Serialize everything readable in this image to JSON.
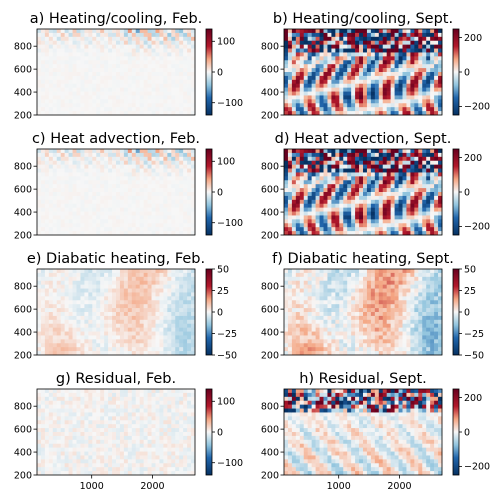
{
  "chart_data": [
    {
      "type": "heatmap",
      "title": "a) Heating/cooling, Feb.",
      "xlabel": "",
      "ylabel": "",
      "xlim": [
        100,
        2700
      ],
      "ylim": [
        200,
        950
      ],
      "xticks": [],
      "yticks": [
        200,
        400,
        600,
        800
      ],
      "colorbar": {
        "ticks": [
          -100,
          0,
          100
        ],
        "range": [
          -140,
          140
        ]
      },
      "intensity": 0.35,
      "pattern": "winter"
    },
    {
      "type": "heatmap",
      "title": "b) Heating/cooling, Sept.",
      "xlabel": "",
      "ylabel": "",
      "xlim": [
        100,
        2700
      ],
      "ylim": [
        200,
        950
      ],
      "xticks": [],
      "yticks": [
        200,
        400,
        600,
        800
      ],
      "colorbar": {
        "ticks": [
          -200,
          0,
          200
        ],
        "range": [
          -250,
          250
        ]
      },
      "intensity": 1.0,
      "pattern": "summer"
    },
    {
      "type": "heatmap",
      "title": "c) Heat advection, Feb.",
      "xlabel": "",
      "ylabel": "",
      "xlim": [
        100,
        2700
      ],
      "ylim": [
        200,
        950
      ],
      "xticks": [],
      "yticks": [
        200,
        400,
        600,
        800
      ],
      "colorbar": {
        "ticks": [
          -100,
          0,
          100
        ],
        "range": [
          -140,
          140
        ]
      },
      "intensity": 0.35,
      "pattern": "winter"
    },
    {
      "type": "heatmap",
      "title": "d) Heat advection, Sept.",
      "xlabel": "",
      "ylabel": "",
      "xlim": [
        100,
        2700
      ],
      "ylim": [
        200,
        950
      ],
      "xticks": [],
      "yticks": [
        200,
        400,
        600,
        800
      ],
      "colorbar": {
        "ticks": [
          -200,
          0,
          200
        ],
        "range": [
          -250,
          250
        ]
      },
      "intensity": 1.0,
      "pattern": "summer"
    },
    {
      "type": "heatmap",
      "title": "e) Diabatic heating, Feb.",
      "xlabel": "",
      "ylabel": "",
      "xlim": [
        100,
        2700
      ],
      "ylim": [
        200,
        950
      ],
      "xticks": [],
      "yticks": [
        200,
        400,
        600,
        800
      ],
      "colorbar": {
        "ticks": [
          -50,
          -25,
          0,
          25,
          50
        ],
        "range": [
          -50,
          50
        ]
      },
      "intensity": 0.3,
      "pattern": "diabatic"
    },
    {
      "type": "heatmap",
      "title": "f) Diabatic heating, Sept.",
      "xlabel": "",
      "ylabel": "",
      "xlim": [
        100,
        2700
      ],
      "ylim": [
        200,
        950
      ],
      "xticks": [],
      "yticks": [
        200,
        400,
        600,
        800
      ],
      "colorbar": {
        "ticks": [
          -50,
          -25,
          0,
          25,
          50
        ],
        "range": [
          -50,
          50
        ]
      },
      "intensity": 0.5,
      "pattern": "diabatic"
    },
    {
      "type": "heatmap",
      "title": "g) Residual, Feb.",
      "xlabel": "",
      "ylabel": "",
      "xlim": [
        100,
        2700
      ],
      "ylim": [
        200,
        950
      ],
      "xticks": [
        1000,
        2000
      ],
      "yticks": [
        200,
        400,
        600,
        800
      ],
      "colorbar": {
        "ticks": [
          -100,
          0,
          100
        ],
        "range": [
          -140,
          140
        ]
      },
      "intensity": 0.08,
      "pattern": "residual-winter"
    },
    {
      "type": "heatmap",
      "title": "h) Residual, Sept.",
      "xlabel": "",
      "ylabel": "",
      "xlim": [
        100,
        2700
      ],
      "ylim": [
        200,
        950
      ],
      "xticks": [
        1000,
        2000
      ],
      "yticks": [
        200,
        400,
        600,
        800
      ],
      "colorbar": {
        "ticks": [
          -200,
          0,
          200
        ],
        "range": [
          -250,
          250
        ]
      },
      "intensity": 0.7,
      "pattern": "residual-summer"
    }
  ],
  "colors": {
    "negative": "#053061",
    "negative_mid": "#4393c3",
    "neutral": "#f7f7f7",
    "positive_mid": "#d6604d",
    "positive": "#67001f"
  }
}
